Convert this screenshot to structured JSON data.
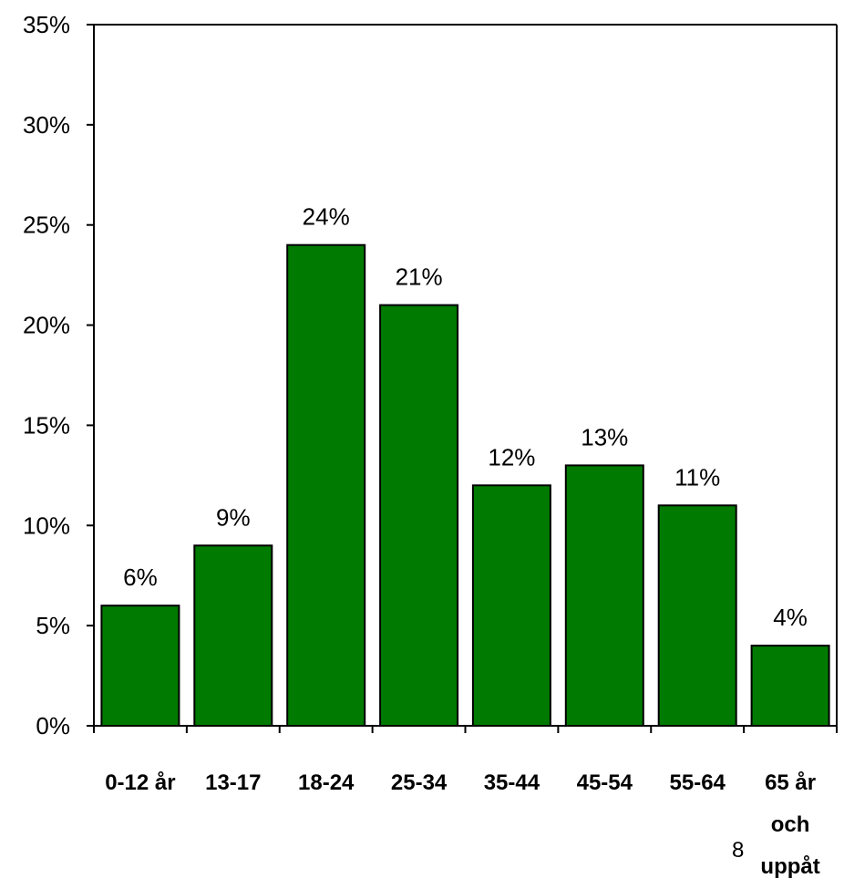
{
  "chart_data": {
    "type": "bar",
    "categories": [
      "0-12 år",
      "13-17",
      "18-24",
      "25-34",
      "35-44",
      "45-54",
      "55-64",
      "65 år och uppåt"
    ],
    "category_lines": [
      [
        "0-12 år"
      ],
      [
        "13-17"
      ],
      [
        "18-24"
      ],
      [
        "25-34"
      ],
      [
        "35-44"
      ],
      [
        "45-54"
      ],
      [
        "55-64"
      ],
      [
        "65 år",
        "och",
        "uppåt"
      ]
    ],
    "values": [
      6,
      9,
      24,
      21,
      12,
      13,
      11,
      4
    ],
    "data_labels": [
      "6%",
      "9%",
      "24%",
      "21%",
      "12%",
      "13%",
      "11%",
      "4%"
    ],
    "ylim": [
      0,
      35
    ],
    "yticks": [
      0,
      5,
      10,
      15,
      20,
      25,
      30,
      35
    ],
    "ytick_labels": [
      "0%",
      "5%",
      "10%",
      "15%",
      "20%",
      "25%",
      "30%",
      "35%"
    ],
    "grid": false,
    "bar_color": "#007a00"
  },
  "page": {
    "number": "8"
  }
}
